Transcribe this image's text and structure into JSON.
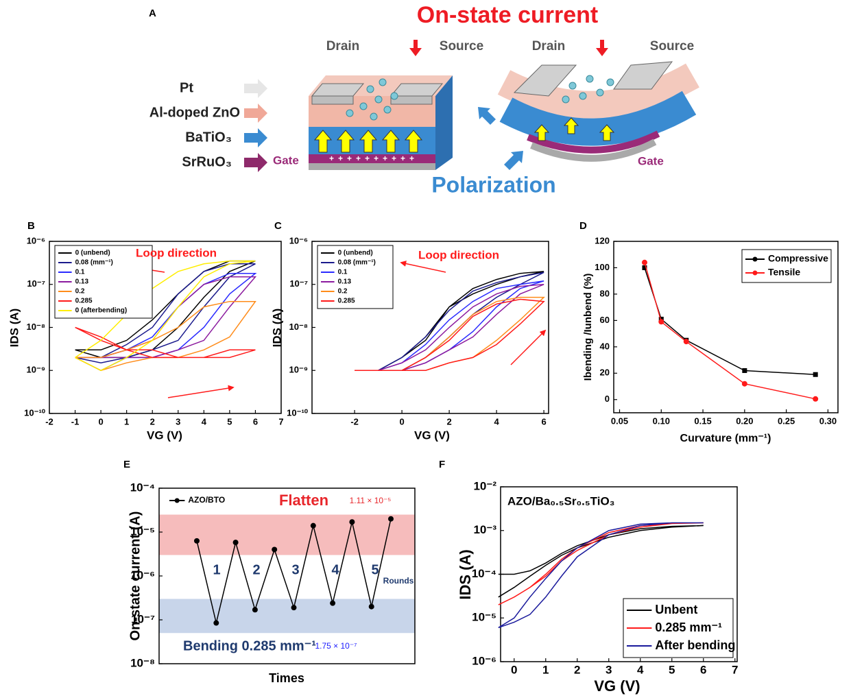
{
  "diagram": {
    "panel": "A",
    "title": "On-state current",
    "left_device": {
      "drain": "Drain",
      "source": "Source",
      "gate": "Gate"
    },
    "right_device": {
      "drain": "Drain",
      "source": "Source",
      "gate": "Gate"
    },
    "layers": [
      "Pt",
      "Al-doped ZnO",
      "BaTiO₃",
      "SrRuO₃"
    ],
    "bottom_label": "Polarization"
  },
  "chart_data": [
    {
      "type": "line",
      "panel": "B",
      "xlabel": "VG (V)",
      "ylabel": "IDS (A)",
      "ylog": true,
      "legend": "upper left",
      "x": [
        -1,
        0,
        1,
        2,
        3,
        4,
        5,
        6,
        5,
        4,
        3,
        2,
        1,
        0,
        -1
      ],
      "series": [
        {
          "name": "0 (unbend)",
          "color": "#000000",
          "values": [
            3e-09,
            2e-09,
            2e-09,
            3e-09,
            1e-08,
            5e-08,
            2e-07,
            3.5e-07,
            3.5e-07,
            2e-07,
            6e-08,
            1.5e-08,
            5e-09,
            3e-09,
            3e-09
          ]
        },
        {
          "name": "0.08 (mm⁻¹)",
          "color": "#1a1a8c",
          "values": [
            2e-09,
            1.5e-09,
            2e-09,
            3e-09,
            5e-09,
            3e-08,
            1.5e-07,
            3e-07,
            3e-07,
            2e-07,
            6e-08,
            1e-08,
            4e-09,
            2e-09,
            2e-09
          ]
        },
        {
          "name": "0.1",
          "color": "#2a2aff",
          "values": [
            2e-09,
            1e-09,
            2e-09,
            2e-09,
            3e-09,
            1e-08,
            6e-08,
            1.8e-07,
            1.8e-07,
            1e-07,
            3e-08,
            6e-09,
            3e-09,
            2e-09,
            2e-09
          ]
        },
        {
          "name": "0.13",
          "color": "#8b1a9e",
          "values": [
            2e-09,
            2e-09,
            2e-09,
            2e-09,
            3e-09,
            5e-09,
            3e-08,
            1.5e-07,
            1.5e-07,
            1e-07,
            3e-08,
            5e-09,
            3e-09,
            2e-09,
            2e-09
          ]
        },
        {
          "name": "0.2",
          "color": "#ff8c1a",
          "values": [
            2e-09,
            1e-09,
            1.5e-09,
            2e-09,
            2e-09,
            3e-09,
            6e-09,
            4e-08,
            4e-08,
            3e-08,
            1e-08,
            5e-09,
            3e-09,
            2e-09,
            2e-09
          ]
        },
        {
          "name": "0.285",
          "color": "#ff1a1a",
          "values": [
            1e-08,
            5e-09,
            3e-09,
            2e-09,
            2e-09,
            2e-09,
            2e-09,
            3e-09,
            3e-09,
            2e-09,
            2e-09,
            3e-09,
            3e-09,
            6e-09,
            1e-08
          ]
        },
        {
          "name": "0 (afterbending)",
          "color": "#ffee00",
          "values": [
            2e-09,
            1e-09,
            2e-09,
            5e-09,
            3e-08,
            1.5e-07,
            3e-07,
            3.5e-07,
            3.5e-07,
            3e-07,
            2e-07,
            8e-08,
            2e-08,
            5e-09,
            2e-09
          ]
        }
      ],
      "xlim": [
        -2,
        7
      ],
      "xticks": [
        -2,
        -1,
        0,
        1,
        2,
        3,
        4,
        5,
        6,
        7
      ],
      "ylim": [
        1e-10,
        1e-06
      ],
      "yticks": [
        {
          "value": 1e-10,
          "label": "10⁻¹⁰"
        },
        {
          "value": 1e-09,
          "label": "10⁻⁹"
        },
        {
          "value": 1e-08,
          "label": "10⁻⁸"
        },
        {
          "value": 1e-07,
          "label": "10⁻⁷"
        },
        {
          "value": 1e-06,
          "label": "10⁻⁶"
        }
      ],
      "annotations": [
        {
          "text": "Loop direction",
          "color": "#ff1a1a"
        }
      ]
    },
    {
      "type": "line",
      "panel": "C",
      "xlabel": "VG (V)",
      "ylabel": "IDS (A)",
      "ylog": true,
      "legend": "upper left",
      "x": [
        -2,
        -1,
        0,
        1,
        2,
        3,
        4,
        5,
        6,
        5,
        4,
        3,
        2,
        1,
        0,
        -1,
        -2
      ],
      "series": [
        {
          "name": "0 (unbend)",
          "color": "#000000",
          "values": [
            1e-09,
            1e-09,
            2e-09,
            5e-09,
            3e-08,
            6e-08,
            1e-07,
            1.5e-07,
            2e-07,
            1.8e-07,
            1.3e-07,
            8e-08,
            3e-08,
            6e-09,
            2e-09,
            1e-09,
            1e-09
          ]
        },
        {
          "name": "0.08 (mm⁻¹)",
          "color": "#1a1a8c",
          "values": [
            1e-09,
            1e-09,
            1e-09,
            2e-09,
            6e-09,
            2e-08,
            5e-08,
            1e-07,
            1.9e-07,
            1.5e-07,
            1.1e-07,
            7e-08,
            2.5e-08,
            6e-09,
            2e-09,
            1e-09,
            1e-09
          ]
        },
        {
          "name": "0.1",
          "color": "#2a2aff",
          "values": [
            1e-09,
            1e-09,
            1e-09,
            1.5e-09,
            3e-09,
            8e-09,
            3e-08,
            8e-08,
            1.2e-07,
            1e-07,
            8e-08,
            4e-08,
            1.5e-08,
            4e-09,
            1.5e-09,
            1e-09,
            1e-09
          ]
        },
        {
          "name": "0.13",
          "color": "#8b1a9e",
          "values": [
            1e-09,
            1e-09,
            1e-09,
            1.5e-09,
            3e-09,
            6e-09,
            2e-08,
            6e-08,
            1e-07,
            9e-08,
            6e-08,
            3e-08,
            1e-08,
            3e-09,
            1.5e-09,
            1e-09,
            1e-09
          ]
        },
        {
          "name": "0.2",
          "color": "#ff8c1a",
          "values": [
            1e-09,
            1e-09,
            1e-09,
            1e-09,
            1.5e-09,
            2e-09,
            5e-09,
            1.5e-08,
            5e-08,
            5e-08,
            4e-08,
            2e-08,
            6e-09,
            2e-09,
            1e-09,
            1e-09,
            1e-09
          ]
        },
        {
          "name": "0.285",
          "color": "#ff1a1a",
          "values": [
            1e-09,
            1e-09,
            1e-09,
            1e-09,
            1.5e-09,
            2e-09,
            4e-09,
            1.2e-08,
            4e-08,
            4.5e-08,
            3.5e-08,
            1.8e-08,
            5e-09,
            2e-09,
            1e-09,
            1e-09,
            1e-09
          ]
        }
      ],
      "xlim": [
        -3.8,
        6.2
      ],
      "xticks": [
        -2,
        0,
        2,
        4,
        6
      ],
      "ylim": [
        1e-10,
        1e-06
      ],
      "yticks": [
        {
          "value": 1e-10,
          "label": "10⁻¹⁰"
        },
        {
          "value": 1e-09,
          "label": "10⁻⁹"
        },
        {
          "value": 1e-08,
          "label": "10⁻⁸"
        },
        {
          "value": 1e-07,
          "label": "10⁻⁷"
        },
        {
          "value": 1e-06,
          "label": "10⁻⁶"
        }
      ],
      "annotations": [
        {
          "text": "Loop direction",
          "color": "#ff1a1a"
        }
      ]
    },
    {
      "type": "line",
      "panel": "D",
      "xlabel": "Curvature (mm⁻¹)",
      "ylabel": "Ibending /Iunbend (%)",
      "ylog": false,
      "legend": "upper right",
      "x": [
        0.08,
        0.1,
        0.13,
        0.2,
        0.285
      ],
      "series": [
        {
          "name": "Compressive",
          "color": "#000000",
          "marker": "square",
          "values": [
            100,
            61,
            45,
            22,
            19
          ]
        },
        {
          "name": "Tensile",
          "color": "#ff1a1a",
          "marker": "circle",
          "values": [
            104,
            59,
            44,
            12,
            0.5
          ]
        }
      ],
      "xlim": [
        0.043,
        0.312
      ],
      "xticks": [
        0.05,
        {
          "value": 0.1,
          "label": "0.10"
        },
        0.15,
        {
          "value": 0.2,
          "label": "0.20"
        },
        0.25,
        {
          "value": 0.3,
          "label": "0.30"
        }
      ],
      "ylim": [
        -10,
        120
      ],
      "yticks": [
        0,
        20,
        40,
        60,
        80,
        100,
        120
      ],
      "annotations": []
    },
    {
      "type": "line",
      "panel": "E",
      "xlabel": "Times",
      "ylabel": "On-state current (A)",
      "ylog": true,
      "legend": "upper left",
      "categories": [
        null,
        null,
        null,
        null,
        null,
        null,
        null,
        null,
        null,
        null,
        null
      ],
      "series": [
        {
          "name": "AZO/BTO",
          "color": "#000000",
          "marker": "circle",
          "values": [
            6.3e-06,
            8.5e-08,
            5.8e-06,
            1.7e-07,
            4e-06,
            1.9e-07,
            1.4e-05,
            2.4e-07,
            1.7e-05,
            2e-07,
            2e-05
          ]
        }
      ],
      "bands": [
        {
          "range": [
            3e-06,
            2.5e-05
          ],
          "color": "#f6bcbc"
        },
        {
          "range": [
            5e-08,
            3e-07
          ],
          "color": "#c8d5ea"
        }
      ],
      "ylim": [
        1e-08,
        0.0001
      ],
      "yticks": [
        {
          "value": 1e-08,
          "label": "10⁻⁸"
        },
        {
          "value": 1e-07,
          "label": "10⁻⁷"
        },
        {
          "value": 1e-06,
          "label": "10⁻⁶"
        },
        {
          "value": 1e-05,
          "label": "10⁻⁵"
        },
        {
          "value": 0.0001,
          "label": "10⁻⁴"
        }
      ],
      "annotations": [
        {
          "text": "Flatten",
          "color": "#e8262b"
        },
        {
          "text": "1.11 × 10⁻⁵",
          "color": "#e8262b"
        },
        {
          "text": "1",
          "color": "#1f3a6e"
        },
        {
          "text": "2",
          "color": "#1f3a6e"
        },
        {
          "text": "3",
          "color": "#1f3a6e"
        },
        {
          "text": "4",
          "color": "#1f3a6e"
        },
        {
          "text": "5",
          "color": "#1f3a6e"
        },
        {
          "text": "Rounds",
          "color": "#1f3a6e"
        },
        {
          "text": "Bending 0.285 mm⁻¹",
          "color": "#1f3a6e"
        },
        {
          "text": "1.75 × 10⁻⁷",
          "color": "#1a1aff"
        }
      ]
    },
    {
      "type": "line",
      "panel": "F",
      "xlabel": "VG (V)",
      "ylabel": "IDS (A)",
      "ylog": true,
      "legend": "lower right",
      "x": [
        -0.5,
        0,
        0.5,
        1,
        1.5,
        2,
        3,
        4,
        5,
        6,
        5,
        4,
        3,
        2,
        1.5,
        1,
        0.5,
        0,
        -0.5
      ],
      "series": [
        {
          "name": "Unbent",
          "color": "#000000",
          "values": [
            3e-05,
            5e-05,
            9e-05,
            0.00016,
            0.00027,
            0.0004,
            0.0007,
            0.001,
            0.0012,
            0.0013,
            0.00125,
            0.0011,
            0.0008,
            0.00045,
            0.0003,
            0.00018,
            0.00012,
            0.0001,
            0.0001
          ]
        },
        {
          "name": "0.285 mm⁻¹",
          "color": "#ff1a1a",
          "values": [
            2e-05,
            3e-05,
            5e-05,
            9e-05,
            0.0002,
            0.00035,
            0.0008,
            0.0012,
            0.00145,
            0.0015,
            0.00145,
            0.0013,
            0.0009,
            0.0004,
            0.00022,
            0.0001,
            5e-05,
            3e-05,
            2e-05
          ]
        },
        {
          "name": "After bending",
          "color": "#1a1a9c",
          "values": [
            6e-06,
            8e-06,
            1.2e-05,
            3e-05,
            9e-05,
            0.00025,
            0.0008,
            0.0013,
            0.0015,
            0.0015,
            0.0015,
            0.0014,
            0.001,
            0.0004,
            0.0002,
            8e-05,
            3e-05,
            1e-05,
            6e-06
          ]
        }
      ],
      "xlim": [
        -0.43,
        7.07
      ],
      "xticks": [
        0,
        1,
        2,
        3,
        4,
        5,
        6,
        7
      ],
      "ylim": [
        1e-06,
        0.01
      ],
      "yticks": [
        {
          "value": 1e-06,
          "label": "10⁻⁶"
        },
        {
          "value": 1e-05,
          "label": "10⁻⁵"
        },
        {
          "value": 0.0001,
          "label": "10⁻⁴"
        },
        {
          "value": 0.001,
          "label": "10⁻³"
        },
        {
          "value": 0.01,
          "label": "10⁻²"
        }
      ],
      "annotations": [
        {
          "text": "AZO/Ba₀.₅Sr₀.₅TiO₃",
          "color": "#000000"
        }
      ]
    }
  ]
}
